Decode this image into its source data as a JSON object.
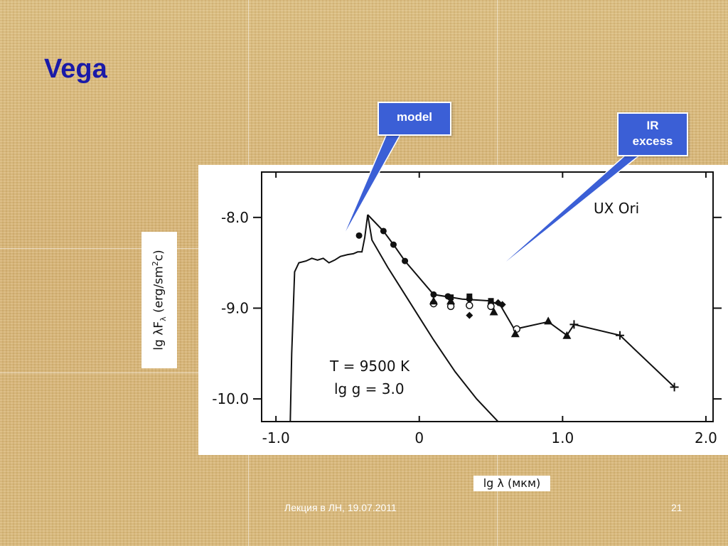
{
  "slide": {
    "title": "Vega",
    "footer": "Лекция в ЛН, 19.07.2011",
    "page_number": "21"
  },
  "callouts": {
    "model": "model",
    "ir_line1": "IR",
    "ir_line2": "excess"
  },
  "colors": {
    "title": "#1a1aa8",
    "callout_fill": "#3b5fd6",
    "background": "#d9b877"
  },
  "chart_data": {
    "type": "line",
    "title": "",
    "xlabel": "lg λ (мкм)",
    "ylabel": "lg λF_λ (erg/sm²c)",
    "object_label": "UX Ori",
    "params_line1": "T = 9500 K",
    "params_line2": "lg g = 3.0",
    "xlim": [
      -1.1,
      2.05
    ],
    "ylim": [
      -10.25,
      -7.5
    ],
    "x_ticks": [
      -1.0,
      0,
      1.0,
      2.0
    ],
    "x_tick_labels": [
      "-1.0",
      "0",
      "1.0",
      "2.0"
    ],
    "y_ticks": [
      -8.0,
      -9.0,
      -10.0
    ],
    "y_tick_labels": [
      "-8.0",
      "-9.0",
      "-10.0"
    ],
    "grid": false,
    "series": [
      {
        "role": "model",
        "values": [
          [
            -0.9,
            -10.25
          ],
          [
            -0.89,
            -9.5
          ],
          [
            -0.87,
            -8.6
          ],
          [
            -0.84,
            -8.5
          ],
          [
            -0.79,
            -8.48
          ],
          [
            -0.75,
            -8.45
          ],
          [
            -0.71,
            -8.47
          ],
          [
            -0.67,
            -8.45
          ],
          [
            -0.63,
            -8.5
          ],
          [
            -0.59,
            -8.47
          ],
          [
            -0.55,
            -8.43
          ],
          [
            -0.5,
            -8.41
          ],
          [
            -0.46,
            -8.4
          ],
          [
            -0.43,
            -8.38
          ],
          [
            -0.4,
            -8.38
          ],
          [
            -0.38,
            -8.22
          ],
          [
            -0.36,
            -7.97
          ],
          [
            -0.33,
            -8.25
          ],
          [
            -0.22,
            -8.55
          ],
          [
            -0.1,
            -8.85
          ],
          [
            0.0,
            -9.1
          ],
          [
            0.1,
            -9.35
          ],
          [
            0.25,
            -9.7
          ],
          [
            0.4,
            -10.0
          ],
          [
            0.55,
            -10.25
          ]
        ]
      },
      {
        "role": "observed",
        "values": [
          [
            -0.36,
            -7.97
          ],
          [
            -0.25,
            -8.15
          ],
          [
            -0.18,
            -8.3
          ],
          [
            -0.1,
            -8.48
          ],
          [
            0.1,
            -8.85
          ],
          [
            0.3,
            -8.9
          ],
          [
            0.5,
            -8.92
          ],
          [
            0.57,
            -8.98
          ],
          [
            0.67,
            -9.25
          ],
          [
            0.7,
            -9.22
          ],
          [
            0.9,
            -9.15
          ],
          [
            1.03,
            -9.3
          ],
          [
            1.08,
            -9.18
          ],
          [
            1.4,
            -9.3
          ],
          [
            1.78,
            -9.87
          ]
        ]
      }
    ],
    "markers": {
      "filled_circles": [
        [
          -0.42,
          -8.2
        ],
        [
          -0.25,
          -8.15
        ],
        [
          -0.18,
          -8.3
        ],
        [
          -0.1,
          -8.48
        ],
        [
          0.1,
          -8.85
        ],
        [
          0.2,
          -8.87
        ],
        [
          0.35,
          -8.9
        ],
        [
          0.5,
          -8.95
        ]
      ],
      "open_circles": [
        [
          0.1,
          -8.95
        ],
        [
          0.22,
          -8.98
        ],
        [
          0.35,
          -8.97
        ],
        [
          0.5,
          -8.98
        ],
        [
          0.68,
          -9.23
        ]
      ],
      "filled_squares": [
        [
          0.22,
          -8.88
        ],
        [
          0.35,
          -8.87
        ],
        [
          0.5,
          -8.92
        ]
      ],
      "filled_diamonds": [
        [
          0.35,
          -9.08
        ],
        [
          0.58,
          -8.96
        ],
        [
          0.55,
          -8.94
        ]
      ],
      "filled_triangles": [
        [
          0.1,
          -8.92
        ],
        [
          0.22,
          -8.92
        ],
        [
          0.52,
          -9.04
        ],
        [
          0.67,
          -9.28
        ],
        [
          0.9,
          -9.14
        ],
        [
          1.03,
          -9.3
        ]
      ],
      "plus": [
        [
          1.08,
          -9.18
        ],
        [
          1.4,
          -9.3
        ],
        [
          1.78,
          -9.87
        ]
      ]
    }
  }
}
